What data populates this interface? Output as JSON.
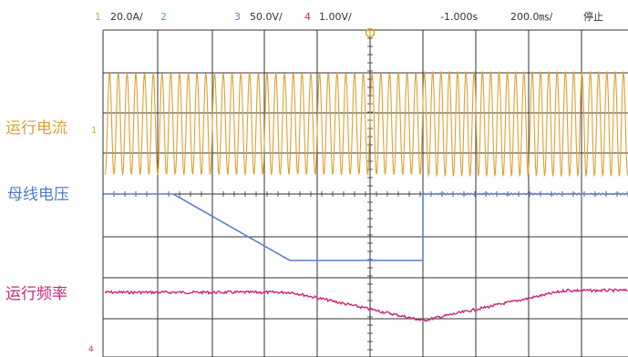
{
  "header": {
    "ch1_num": "1",
    "ch1_scale": "20.0A/",
    "ch2_num": "2",
    "ch3_num": "3",
    "ch3_scale": "50.0V/",
    "ch4_num": "4",
    "ch4_scale": "1.00V/",
    "trigger_offset": "-1.000s",
    "timebase": "200.0㎳/",
    "status": "停止"
  },
  "labels": {
    "current": "运行电流",
    "bus_voltage": "母线电压",
    "frequency": "运行频率"
  },
  "markers": {
    "ch1_level": "1",
    "bottom_left": "4"
  },
  "colors": {
    "current": "#e0a030",
    "voltage": "#5b7fd0",
    "frequency": "#c8287a",
    "ch2": "#5cb85c",
    "grid": "#333333",
    "trigger": "#e8a030"
  }
}
